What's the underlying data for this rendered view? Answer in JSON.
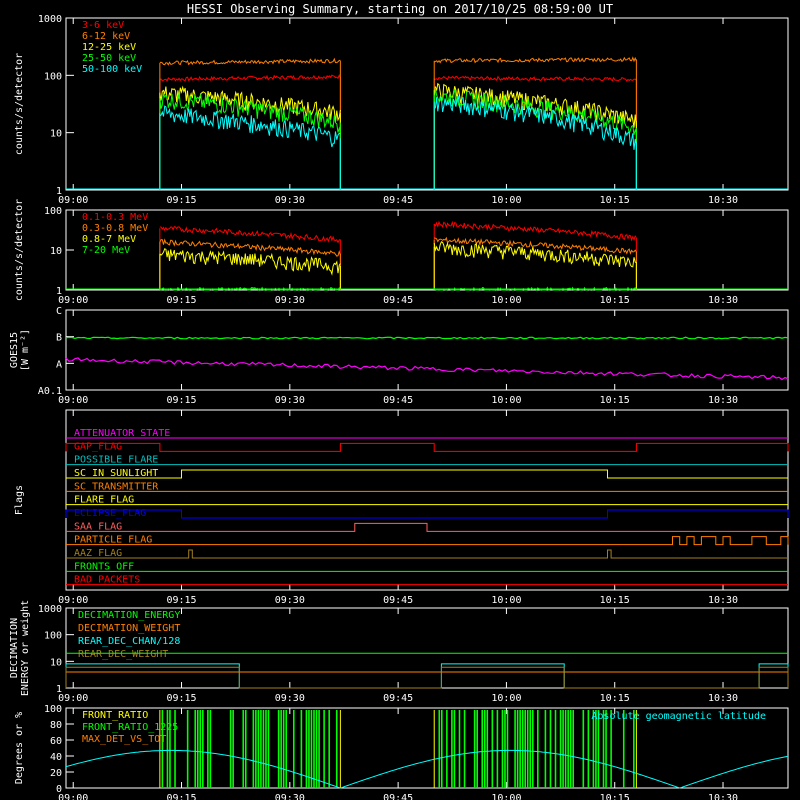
{
  "title": "HESSI Observing Summary, starting on 2017/10/25 08:59:00 UT",
  "time_ticks": [
    "09:00",
    "09:15",
    "09:30",
    "09:45",
    "10:00",
    "10:15",
    "10:30"
  ],
  "colors": {
    "red": "#ff0000",
    "orange": "#ff8000",
    "yellow": "#ffff00",
    "green": "#00ff00",
    "cyan": "#00ffff",
    "magenta": "#ff00ff",
    "blue": "#0000ff",
    "olive": "#a08020",
    "pink": "#ff6060",
    "teal": "#00c0c0",
    "white": "#ffffff"
  },
  "chart_data": [
    {
      "id": "panel1",
      "type": "line",
      "ylabel": "counts/s/detector",
      "y_scale": "log",
      "ylim": [
        1,
        1000
      ],
      "ytick_labels": [
        "1",
        "10",
        "100",
        "1000"
      ],
      "legend": [
        {
          "label": "3-6 keV",
          "color": "#ff0000"
        },
        {
          "label": "6-12 keV",
          "color": "#ff8000"
        },
        {
          "label": "12-25 keV",
          "color": "#ffff00"
        },
        {
          "label": "25-50 keV",
          "color": "#00ff00"
        },
        {
          "label": "50-100 keV",
          "color": "#00ffff"
        }
      ],
      "segments_min": [
        [
          13,
          38
        ],
        [
          51,
          79
        ]
      ],
      "series": [
        {
          "name": "3-6 keV",
          "color": "#ff0000",
          "seg_levels": [
            [
              85,
              95
            ],
            [
              90,
              85
            ]
          ]
        },
        {
          "name": "6-12 keV",
          "color": "#ff8000",
          "seg_levels": [
            [
              165,
              180
            ],
            [
              180,
              190
            ]
          ]
        },
        {
          "name": "12-25 keV",
          "color": "#ffff00",
          "seg_levels": [
            [
              50,
              22
            ],
            [
              55,
              16
            ]
          ]
        },
        {
          "name": "25-50 keV",
          "color": "#00ff00",
          "seg_levels": [
            [
              40,
              15
            ],
            [
              45,
              12
            ]
          ]
        },
        {
          "name": "50-100 keV",
          "color": "#00ffff",
          "seg_levels": [
            [
              22,
              8
            ],
            [
              35,
              7
            ]
          ]
        }
      ]
    },
    {
      "id": "panel2",
      "type": "line",
      "ylabel": "counts/s/detector",
      "y_scale": "log",
      "ylim": [
        1,
        100
      ],
      "ytick_labels": [
        "1",
        "10",
        "100"
      ],
      "legend": [
        {
          "label": "0.1-0.3 MeV",
          "color": "#ff0000"
        },
        {
          "label": "0.3-0.8 MeV",
          "color": "#ff8000"
        },
        {
          "label": "0.8-7 MeV",
          "color": "#ffff00"
        },
        {
          "label": "7-20 MeV",
          "color": "#00ff00"
        }
      ],
      "segments_min": [
        [
          13,
          38
        ],
        [
          51,
          79
        ]
      ],
      "series": [
        {
          "name": "0.1-0.3 MeV",
          "color": "#ff0000",
          "seg_levels": [
            [
              35,
              18
            ],
            [
              45,
              20
            ]
          ]
        },
        {
          "name": "0.3-0.8 MeV",
          "color": "#ff8000",
          "seg_levels": [
            [
              16,
              8
            ],
            [
              18,
              9
            ]
          ]
        },
        {
          "name": "0.8-7 MeV",
          "color": "#ffff00",
          "seg_levels": [
            [
              8,
              4
            ],
            [
              12,
              5
            ]
          ]
        },
        {
          "name": "7-20 MeV",
          "color": "#00ff00",
          "seg_levels": [
            [
              1,
              1
            ],
            [
              1,
              1
            ]
          ]
        }
      ]
    },
    {
      "id": "panel3",
      "type": "line",
      "ylabel": "GOES15",
      "ylabel2": "[W m⁻²]",
      "ytick_labels": [
        "A0.1",
        "A",
        "B",
        "C"
      ],
      "series": [
        {
          "name": "green",
          "color": "#00ff00",
          "level_frac": 0.65
        },
        {
          "name": "magenta",
          "color": "#ff00ff",
          "level_start": 0.38,
          "level_end": 0.15
        }
      ]
    },
    {
      "id": "panel4",
      "type": "line",
      "ylabel": "Flags",
      "flags": [
        {
          "label": "ATTENUATOR_STATE",
          "color": "#ff00ff",
          "high": []
        },
        {
          "label": "GAP_FLAG",
          "color": "#ff0000",
          "high": [
            [
              0,
              13
            ],
            [
              38,
              51
            ],
            [
              79,
              100
            ]
          ]
        },
        {
          "label": "POSSIBLE_FLARE",
          "color": "#00c0c0",
          "high": []
        },
        {
          "label": "SC_IN_SUNLIGHT",
          "color": "#ffff00",
          "high": [
            [
              16,
              75
            ]
          ]
        },
        {
          "label": "SC_TRANSMITTER",
          "color": "#ff8000",
          "high": []
        },
        {
          "label": "FLARE_FLAG",
          "color": "#ffff00",
          "high": []
        },
        {
          "label": "ECLIPSE_FLAG",
          "color": "#0000ff",
          "high": [
            [
              0,
              16
            ],
            [
              75,
              100
            ]
          ]
        },
        {
          "label": "SAA_FLAG",
          "color": "#ff6060",
          "high": [
            [
              40,
              50
            ]
          ]
        },
        {
          "label": "PARTICLE_FLAG",
          "color": "#ff8000",
          "high": [
            [
              84,
              85
            ],
            [
              86,
              87
            ],
            [
              88,
              90
            ],
            [
              91,
              92
            ],
            [
              95,
              97
            ],
            [
              99,
              100
            ]
          ]
        },
        {
          "label": "AAZ_FLAG",
          "color": "#a08020",
          "high": [
            [
              17,
              17.5
            ],
            [
              75,
              75.5
            ]
          ]
        },
        {
          "label": "FRONTS_OFF",
          "color": "#00ff00",
          "high": []
        },
        {
          "label": "BAD_PACKETS",
          "color": "#ff0000",
          "high": []
        }
      ]
    },
    {
      "id": "panel5",
      "type": "line",
      "ylabel": "DECIMATION",
      "ylabel2": "ENERGY or weight",
      "y_scale": "log",
      "ylim": [
        1,
        1000
      ],
      "ytick_labels": [
        "1",
        "10",
        "100",
        "1000"
      ],
      "legend": [
        {
          "label": "DECIMATION_ENERGY",
          "color": "#00ff00"
        },
        {
          "label": "DECIMATION_WEIGHT",
          "color": "#ff8000"
        },
        {
          "label": "REAR_DEC_CHAN/128",
          "color": "#00ffff"
        },
        {
          "label": "REAR_DEC_WEIGHT",
          "color": "#a08020"
        }
      ],
      "series": [
        {
          "name": "DECIMATION_ENERGY",
          "color": "#00ff00",
          "level": 20
        },
        {
          "name": "DECIMATION_WEIGHT",
          "color": "#ff8000",
          "level": 4
        },
        {
          "name": "REAR_DEC_CHAN/128",
          "color": "#00ffff",
          "high": [
            [
              0,
              24
            ],
            [
              52,
              69
            ],
            [
              96,
              100
            ]
          ],
          "hi": 8,
          "lo": 1
        },
        {
          "name": "REAR_DEC_WEIGHT",
          "color": "#a08020",
          "high": [
            [
              0,
              24
            ],
            [
              52,
              69
            ],
            [
              96,
              100
            ]
          ],
          "hi": 6,
          "lo": 1
        }
      ]
    },
    {
      "id": "panel6",
      "type": "line",
      "ylabel": "Degrees or %",
      "ylim": [
        0,
        100
      ],
      "ytick_labels": [
        "0",
        "20",
        "40",
        "60",
        "80",
        "100"
      ],
      "legend": [
        {
          "label": "FRONT_RATIO",
          "color": "#ffff00"
        },
        {
          "label": "FRONT_RATIO_1225",
          "color": "#00ff00"
        },
        {
          "label": "MAX_DET_VS_TOT",
          "color": "#ff8000"
        }
      ],
      "annotation": "Absolute geomagnetic latitude",
      "annotation_color": "#00ffff",
      "segments_min": [
        [
          13,
          38
        ],
        [
          51,
          79
        ]
      ],
      "latitude": {
        "amplitude": 47,
        "period_min": 47,
        "phase_min": -9
      }
    }
  ]
}
